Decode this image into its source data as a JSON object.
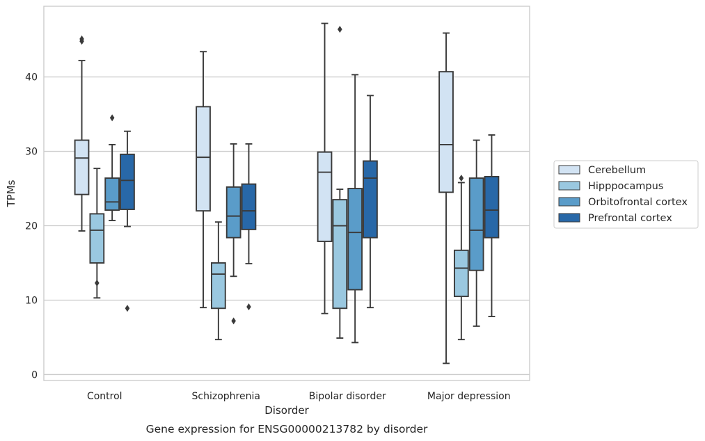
{
  "chart_data": {
    "type": "box",
    "caption": "Gene expression for ENSG00000213782 by disorder",
    "xlabel": "Disorder",
    "ylabel": "TPMs",
    "ylim": [
      -0.8,
      49.5
    ],
    "yticks": [
      0,
      10,
      20,
      30,
      40
    ],
    "grid": true,
    "legend_position": "right",
    "categories": [
      "Control",
      "Schizophrenia",
      "Bipolar disorder",
      "Major depression"
    ],
    "series": [
      {
        "name": "Cerebellum",
        "color": "#d2e3f3",
        "boxes": [
          {
            "whisker_low": 19.3,
            "q1": 24.2,
            "median": 29.1,
            "q3": 31.5,
            "whisker_high": 42.2,
            "outliers": [
              44.8,
              45.1
            ]
          },
          {
            "whisker_low": 9.0,
            "q1": 22.0,
            "median": 29.2,
            "q3": 36.0,
            "whisker_high": 43.4,
            "outliers": []
          },
          {
            "whisker_low": 8.2,
            "q1": 17.9,
            "median": 27.2,
            "q3": 29.9,
            "whisker_high": 47.2,
            "outliers": []
          },
          {
            "whisker_low": 1.5,
            "q1": 24.5,
            "median": 30.9,
            "q3": 40.7,
            "whisker_high": 45.9,
            "outliers": []
          }
        ]
      },
      {
        "name": "Hipppocampus",
        "color": "#9ac8e0",
        "boxes": [
          {
            "whisker_low": 10.3,
            "q1": 15.0,
            "median": 19.4,
            "q3": 21.6,
            "whisker_high": 27.7,
            "outliers": [
              12.3
            ]
          },
          {
            "whisker_low": 4.7,
            "q1": 8.9,
            "median": 13.5,
            "q3": 15.0,
            "whisker_high": 20.5,
            "outliers": []
          },
          {
            "whisker_low": 4.9,
            "q1": 8.9,
            "median": 20.0,
            "q3": 23.5,
            "whisker_high": 24.9,
            "outliers": [
              46.4
            ]
          },
          {
            "whisker_low": 4.7,
            "q1": 10.5,
            "median": 14.3,
            "q3": 16.7,
            "whisker_high": 25.8,
            "outliers": [
              26.4
            ]
          }
        ]
      },
      {
        "name": "Orbitofrontal cortex",
        "color": "#5a9cc9",
        "boxes": [
          {
            "whisker_low": 20.7,
            "q1": 22.1,
            "median": 23.2,
            "q3": 26.4,
            "whisker_high": 30.9,
            "outliers": [
              34.5
            ]
          },
          {
            "whisker_low": 13.2,
            "q1": 18.4,
            "median": 21.3,
            "q3": 25.2,
            "whisker_high": 31.0,
            "outliers": [
              7.2
            ]
          },
          {
            "whisker_low": 4.3,
            "q1": 11.4,
            "median": 19.1,
            "q3": 25.0,
            "whisker_high": 40.3,
            "outliers": []
          },
          {
            "whisker_low": 6.5,
            "q1": 14.0,
            "median": 19.4,
            "q3": 26.4,
            "whisker_high": 31.5,
            "outliers": []
          }
        ]
      },
      {
        "name": "Prefrontal cortex",
        "color": "#2868a8",
        "boxes": [
          {
            "whisker_low": 19.9,
            "q1": 22.2,
            "median": 26.1,
            "q3": 29.6,
            "whisker_high": 32.7,
            "outliers": [
              8.9
            ]
          },
          {
            "whisker_low": 14.9,
            "q1": 19.5,
            "median": 22.0,
            "q3": 25.6,
            "whisker_high": 31.0,
            "outliers": [
              9.1
            ]
          },
          {
            "whisker_low": 9.0,
            "q1": 18.4,
            "median": 26.4,
            "q3": 28.7,
            "whisker_high": 37.5,
            "outliers": []
          },
          {
            "whisker_low": 7.8,
            "q1": 18.4,
            "median": 22.1,
            "q3": 26.6,
            "whisker_high": 32.2,
            "outliers": []
          }
        ]
      }
    ]
  }
}
